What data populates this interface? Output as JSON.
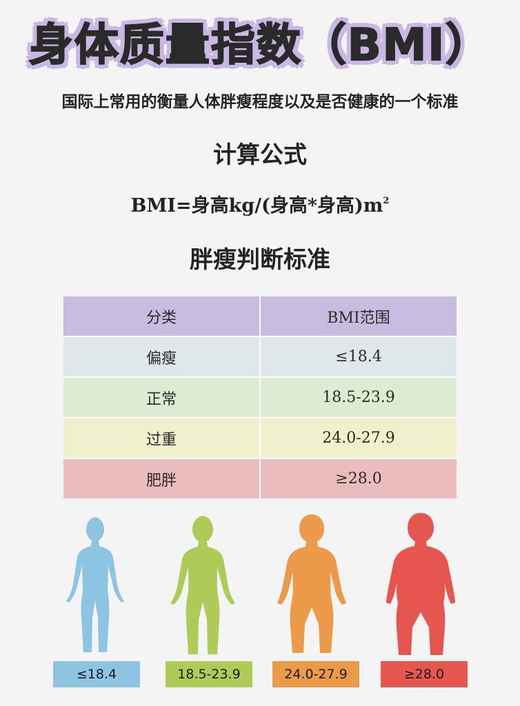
{
  "title": "身体质量指数（BMI）",
  "subtitle": "国际上常用的衡量人体胖瘦程度以及是否健康的一个标准",
  "formula_section": {
    "heading": "计算公式",
    "formula_text": "BMI=身高kg/(身高*身高)m",
    "formula_superscript": "2"
  },
  "criteria_section": {
    "heading": "胖瘦判断标准"
  },
  "table": {
    "header": {
      "category": "分类",
      "range": "BMI范围",
      "color": "#c7bce0"
    },
    "rows": [
      {
        "category": "偏瘦",
        "range": "≤18.4",
        "color": "#dfe7ea"
      },
      {
        "category": "正常",
        "range": "18.5-23.9",
        "color": "#dbecd2"
      },
      {
        "category": "过重",
        "range": "24.0-27.9",
        "color": "#f0f1cc"
      },
      {
        "category": "肥胖",
        "range": "≥28.0",
        "color": "#ebbcbd"
      }
    ]
  },
  "figures": [
    {
      "icon": "slim-person-icon",
      "color": "#8cc4e2",
      "badge": "≤18.4"
    },
    {
      "icon": "normal-person-icon",
      "color": "#aecb58",
      "badge": "18.5-23.9"
    },
    {
      "icon": "overweight-person-icon",
      "color": "#ea9a48",
      "badge": "24.0-27.9"
    },
    {
      "icon": "obese-person-icon",
      "color": "#e5564e",
      "badge": "≥28.0"
    }
  ]
}
